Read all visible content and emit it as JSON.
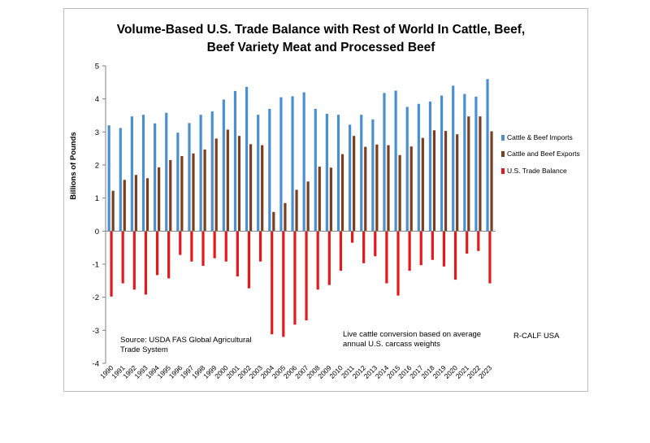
{
  "chart_data": {
    "type": "bar",
    "title_lines": [
      "Volume-Based U.S. Trade Balance with Rest of World In Cattle, Beef,",
      "Beef Variety Meat and Processed Beef"
    ],
    "ylabel": "Billions of Pounds",
    "ylim": [
      -4,
      5
    ],
    "yticks": [
      "5",
      "4",
      "3",
      "2",
      "1",
      "0",
      "-1",
      "-2",
      "-3",
      "-4"
    ],
    "categories": [
      "1990",
      "1991",
      "1992",
      "1993",
      "1994",
      "1995",
      "1996",
      "1997",
      "1998",
      "1999",
      "2000",
      "2001",
      "2002",
      "2003",
      "2004",
      "2005",
      "2006",
      "2007",
      "2008",
      "2009",
      "2010",
      "2011",
      "2012",
      "2013",
      "2014",
      "2015",
      "2016",
      "2017",
      "2018",
      "2019",
      "2020",
      "2021",
      "2022",
      "2023"
    ],
    "series": [
      {
        "name": "Cattle & Beef Imports",
        "color": "#4a8fd0",
        "values": [
          3.2,
          3.12,
          3.47,
          3.52,
          3.26,
          3.58,
          2.98,
          3.27,
          3.52,
          3.62,
          3.98,
          4.24,
          4.36,
          3.52,
          3.7,
          4.05,
          4.08,
          4.2,
          3.7,
          3.55,
          3.52,
          3.22,
          3.52,
          3.38,
          4.18,
          4.25,
          3.76,
          3.85,
          3.92,
          4.1,
          4.4,
          4.15,
          4.07,
          4.6
        ]
      },
      {
        "name": "Cattle and Beef Exports",
        "color": "#7b3f1e",
        "values": [
          1.22,
          1.55,
          1.7,
          1.6,
          1.93,
          2.15,
          2.27,
          2.35,
          2.47,
          2.8,
          3.07,
          2.88,
          2.63,
          2.6,
          0.58,
          0.85,
          1.25,
          1.5,
          1.95,
          1.92,
          2.33,
          2.88,
          2.55,
          2.62,
          2.6,
          2.3,
          2.56,
          2.82,
          3.05,
          3.03,
          2.93,
          3.47,
          3.47,
          3.02
        ]
      },
      {
        "name": "U.S. Trade Balance",
        "color": "#e3191b",
        "values": [
          -1.98,
          -1.58,
          -1.77,
          -1.92,
          -1.33,
          -1.43,
          -0.72,
          -0.92,
          -1.05,
          -0.82,
          -0.92,
          -1.37,
          -1.73,
          -0.92,
          -3.12,
          -3.2,
          -2.83,
          -2.7,
          -1.77,
          -1.63,
          -1.2,
          -0.35,
          -0.97,
          -0.76,
          -1.58,
          -1.95,
          -1.2,
          -1.03,
          -0.87,
          -1.07,
          -1.47,
          -0.68,
          -0.6,
          -1.58
        ]
      }
    ],
    "legend_position": "right",
    "grid": false
  },
  "annotations": {
    "source_line1": "Source:  USDA FAS Global Agricultural",
    "source_line2": "Trade System",
    "conversion_line1": "Live cattle conversion based on average",
    "conversion_line2": "annual U.S. carcass weights",
    "credit": "R-CALF USA"
  }
}
